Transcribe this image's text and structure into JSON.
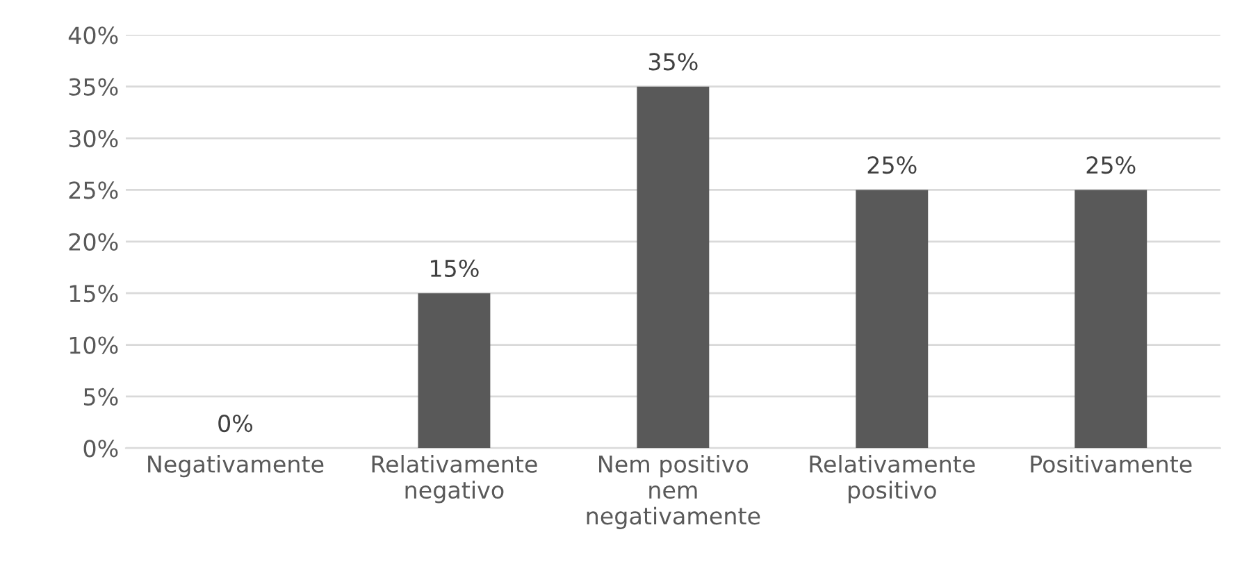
{
  "chart_data": {
    "type": "bar",
    "categories": [
      "Negativamente",
      "Relativamente\nnegativo",
      "Nem positivo\nnem\nnegativamente",
      "Relativamente\npositivo",
      "Positivamente"
    ],
    "values": [
      0,
      15,
      35,
      25,
      25
    ],
    "value_labels": [
      "0%",
      "15%",
      "35%",
      "25%",
      "25%"
    ],
    "color": "#595959",
    "ylim": [
      0,
      40
    ],
    "yticks": [
      {
        "value": 0,
        "label": "0%"
      },
      {
        "value": 5,
        "label": "5%"
      },
      {
        "value": 10,
        "label": "10%"
      },
      {
        "value": 15,
        "label": "15%"
      },
      {
        "value": 20,
        "label": "20%"
      },
      {
        "value": 25,
        "label": "25%"
      },
      {
        "value": 30,
        "label": "30%"
      },
      {
        "value": 35,
        "label": "35%"
      },
      {
        "value": 40,
        "label": "40%"
      }
    ],
    "grid": "y",
    "legend": false
  }
}
